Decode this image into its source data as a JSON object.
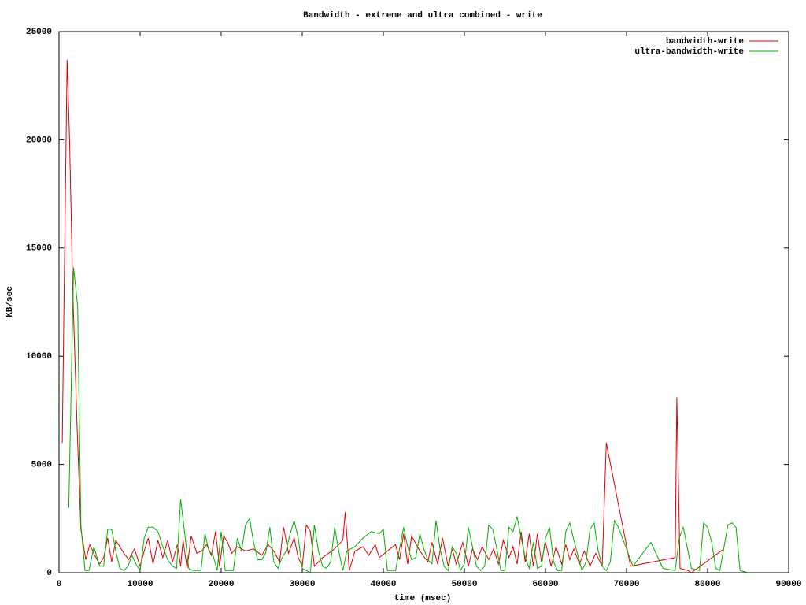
{
  "chart_data": {
    "type": "line",
    "title": "Bandwidth - extreme and ultra combined - write",
    "x_label": "time (msec)",
    "y_label": "KB/sec",
    "xlim": [
      0,
      90000
    ],
    "xticks": [
      0,
      10000,
      20000,
      30000,
      40000,
      50000,
      60000,
      70000,
      80000,
      90000
    ],
    "ylim": [
      0,
      25000
    ],
    "yticks": [
      0,
      5000,
      10000,
      15000,
      20000,
      25000
    ],
    "legend": "top-right",
    "grid": false,
    "series": [
      {
        "name": "bandwidth-write",
        "color": "#e00000",
        "x": [
          400,
          700,
          1000,
          1300,
          1700,
          2200,
          2700,
          3300,
          3800,
          4400,
          5000,
          5500,
          6000,
          6500,
          7000,
          8000,
          8600,
          9300,
          10000,
          10500,
          11000,
          11600,
          12200,
          12800,
          13400,
          14000,
          14600,
          15000,
          15300,
          15800,
          16300,
          17000,
          17600,
          18200,
          18800,
          19300,
          19800,
          20300,
          20800,
          21300,
          22000,
          23000,
          24000,
          25000,
          25800,
          26500,
          27200,
          27700,
          28300,
          29000,
          29500,
          30000,
          30500,
          31000,
          31500,
          32500,
          34000,
          35000,
          35300,
          35800,
          36500,
          37500,
          38200,
          39000,
          39500,
          40500,
          41500,
          42000,
          42500,
          43000,
          43500,
          44500,
          45500,
          46000,
          46700,
          47300,
          48000,
          48500,
          49000,
          49800,
          50500,
          51000,
          51600,
          52200,
          53000,
          53600,
          54200,
          54800,
          55500,
          56000,
          56500,
          57000,
          57500,
          58000,
          58500,
          59000,
          59500,
          60000,
          60700,
          61300,
          62000,
          62500,
          63000,
          63500,
          64200,
          64800,
          65500,
          66200,
          67000,
          67500,
          70500,
          76000,
          76200,
          76600,
          77600,
          78000,
          82000
        ],
        "values": [
          6000,
          15000,
          23700,
          20000,
          13000,
          7000,
          2000,
          600,
          1300,
          800,
          400,
          700,
          1600,
          500,
          1500,
          900,
          600,
          1100,
          300,
          1000,
          1600,
          400,
          1500,
          700,
          1500,
          500,
          1300,
          300,
          1500,
          200,
          1700,
          900,
          1000,
          1300,
          800,
          1900,
          300,
          1700,
          1400,
          900,
          1200,
          1000,
          1100,
          800,
          1300,
          1000,
          500,
          2100,
          900,
          1600,
          700,
          300,
          2200,
          1900,
          300,
          700,
          1100,
          1500,
          2800,
          100,
          1000,
          1200,
          800,
          1300,
          700,
          1000,
          1300,
          600,
          1800,
          400,
          1700,
          1000,
          500,
          1400,
          400,
          1600,
          300,
          1100,
          400,
          1400,
          300,
          1100,
          600,
          1200,
          600,
          1100,
          400,
          1500,
          700,
          1200,
          400,
          1900,
          500,
          1800,
          300,
          1800,
          500,
          1400,
          300,
          1200,
          400,
          1300,
          600,
          1100,
          400,
          1000,
          300,
          900,
          300,
          6000,
          300,
          700,
          8100,
          200,
          100,
          0,
          1100
        ]
      },
      {
        "name": "ultra-bandwidth-write",
        "color": "#00b000",
        "x": [
          1200,
          1800,
          2300,
          2700,
          3200,
          3700,
          4300,
          5000,
          5500,
          6000,
          6500,
          7000,
          7500,
          8000,
          8500,
          9000,
          9500,
          10000,
          10500,
          11000,
          11600,
          12200,
          12800,
          13400,
          14000,
          14500,
          15000,
          15500,
          16000,
          16500,
          17500,
          18000,
          18500,
          19000,
          19500,
          20000,
          20500,
          21000,
          21500,
          22000,
          22500,
          23000,
          23500,
          24000,
          24500,
          25000,
          25500,
          26000,
          26500,
          27000,
          27500,
          28000,
          28500,
          29000,
          29500,
          30000,
          30500,
          31000,
          31500,
          32000,
          32500,
          33000,
          33500,
          34000,
          34500,
          35000,
          35500,
          36500,
          37500,
          38500,
          39500,
          40000,
          40500,
          41500,
          42000,
          42500,
          43000,
          43500,
          44000,
          44500,
          45000,
          45500,
          46000,
          46500,
          47000,
          47500,
          48000,
          48500,
          49000,
          49500,
          50000,
          50500,
          51000,
          51500,
          52000,
          52500,
          53000,
          53500,
          54000,
          54500,
          55000,
          55500,
          56000,
          56500,
          57000,
          57500,
          58000,
          58500,
          59000,
          59500,
          60000,
          60500,
          61000,
          61500,
          62000,
          62500,
          63000,
          63500,
          64000,
          64500,
          65000,
          65500,
          66000,
          66500,
          67000,
          67500,
          68000,
          68500,
          69000,
          70500,
          70800,
          73000,
          74500,
          76000,
          76500,
          77000,
          78000,
          79000,
          79500,
          80000,
          80500,
          81000,
          81500,
          82500,
          83000,
          83500,
          84000,
          85000
        ],
        "values": [
          3000,
          14100,
          12300,
          2200,
          100,
          100,
          1200,
          300,
          300,
          2000,
          2000,
          1000,
          200,
          100,
          300,
          800,
          400,
          100,
          1600,
          2100,
          2100,
          1900,
          1200,
          600,
          300,
          200,
          3400,
          1800,
          200,
          100,
          100,
          1800,
          1000,
          800,
          100,
          1900,
          100,
          100,
          100,
          1600,
          1000,
          2200,
          2500,
          1400,
          600,
          600,
          900,
          2100,
          500,
          200,
          700,
          1000,
          1800,
          2400,
          1600,
          200,
          100,
          0,
          2200,
          1000,
          300,
          200,
          500,
          2100,
          1000,
          100,
          1000,
          1200,
          1600,
          1900,
          1800,
          2000,
          100,
          100,
          1100,
          2100,
          1200,
          600,
          700,
          1800,
          1100,
          600,
          400,
          2400,
          1100,
          300,
          100,
          1200,
          900,
          100,
          400,
          2100,
          1200,
          300,
          100,
          300,
          2200,
          2000,
          1100,
          100,
          100,
          2100,
          1900,
          2600,
          1600,
          700,
          200,
          1400,
          200,
          300,
          1600,
          2100,
          500,
          100,
          100,
          1900,
          2300,
          1500,
          800,
          100,
          500,
          2000,
          2300,
          1000,
          300,
          100,
          500,
          2400,
          2100,
          600,
          300,
          1400,
          200,
          100,
          1600,
          2100,
          200,
          100,
          2300,
          2100,
          1400,
          200,
          100,
          2200,
          2300,
          2100,
          100,
          0
        ]
      }
    ]
  }
}
